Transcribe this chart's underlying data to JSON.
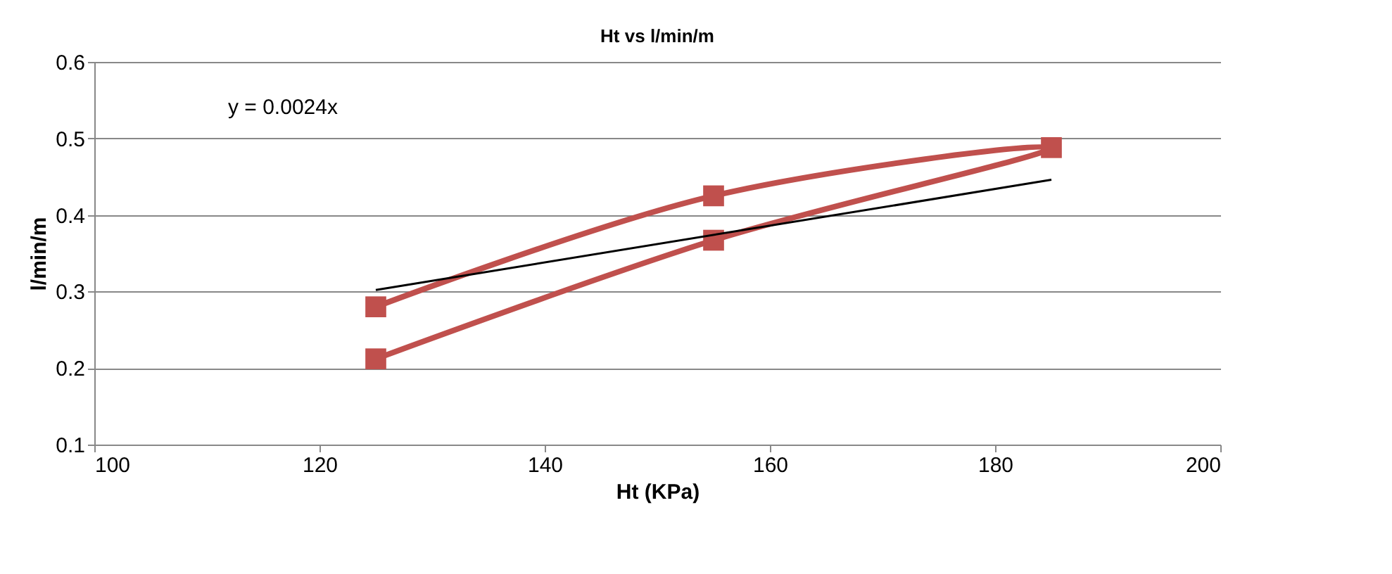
{
  "chart_data": {
    "type": "line",
    "title": "Ht vs l/min/m",
    "xlabel": "Ht (KPa)",
    "ylabel": "l/min/m",
    "series": [
      {
        "color": "#c0504d",
        "marker": "square",
        "x": [
          125,
          155,
          185,
          155,
          125
        ],
        "values": [
          0.212,
          0.367,
          0.488,
          0.425,
          0.28
        ]
      },
      {
        "color": "#000000",
        "marker": "none",
        "x": [
          125,
          185
        ],
        "values": [
          0.302,
          0.446
        ]
      }
    ],
    "annotations": [
      "y = 0.0024x"
    ],
    "xlim": [
      100,
      200
    ],
    "xticks": [
      100,
      120,
      140,
      160,
      180,
      200
    ],
    "ylim": [
      0.1,
      0.6
    ],
    "yticks": [
      0.1,
      0.2,
      0.3,
      0.4,
      0.5,
      0.6
    ],
    "grid": "y"
  }
}
